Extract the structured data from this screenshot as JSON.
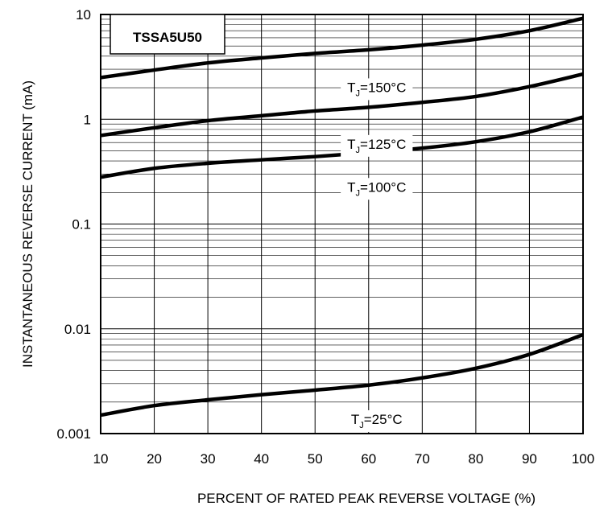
{
  "chart_data": {
    "type": "line",
    "title": "TSSA5U50",
    "xlabel": "PERCENT OF RATED PEAK REVERSE VOLTAGE (%)",
    "ylabel": "INSTANTANEOUS REVERSE CURRENT (mA)",
    "xlim": [
      10,
      100
    ],
    "ylim": [
      0.001,
      10
    ],
    "yscale": "log",
    "grid": true,
    "x_ticks": [
      "10",
      "20",
      "30",
      "40",
      "50",
      "60",
      "70",
      "80",
      "90",
      "100"
    ],
    "y_ticks": [
      "0.001",
      "0.01",
      "0.1",
      "1",
      "10"
    ],
    "series": [
      {
        "name": "150°C",
        "label_prefix": "T",
        "label_sub": "J",
        "label_rest": "=150°C",
        "label_x": 55,
        "label_y": 2.5,
        "x": [
          10,
          20,
          30,
          40,
          50,
          60,
          70,
          80,
          90,
          100
        ],
        "y": [
          2.5,
          2.95,
          3.45,
          3.85,
          4.25,
          4.6,
          5.1,
          5.8,
          7.0,
          9.2
        ]
      },
      {
        "name": "125°C",
        "label_prefix": "T",
        "label_sub": "J",
        "label_rest": "=125°C",
        "label_x": 55,
        "label_y": 0.72,
        "x": [
          10,
          20,
          30,
          40,
          50,
          60,
          70,
          80,
          90,
          100
        ],
        "y": [
          0.7,
          0.83,
          0.97,
          1.08,
          1.2,
          1.3,
          1.45,
          1.65,
          2.05,
          2.7
        ]
      },
      {
        "name": "100°C",
        "label_prefix": "T",
        "label_sub": "J",
        "label_rest": "=100°C",
        "label_x": 55,
        "label_y": 0.28,
        "x": [
          10,
          20,
          30,
          40,
          50,
          60,
          70,
          80,
          90,
          100
        ],
        "y": [
          0.28,
          0.34,
          0.38,
          0.41,
          0.44,
          0.48,
          0.53,
          0.61,
          0.76,
          1.05
        ]
      },
      {
        "name": "25°C",
        "label_prefix": "T",
        "label_sub": "J",
        "label_rest": "=25°C",
        "label_x": 55,
        "label_y": 0.0017,
        "x": [
          10,
          20,
          30,
          40,
          50,
          60,
          70,
          80,
          90,
          100
        ],
        "y": [
          0.0015,
          0.00185,
          0.0021,
          0.00235,
          0.0026,
          0.0029,
          0.0034,
          0.0042,
          0.0057,
          0.0088
        ]
      }
    ]
  }
}
